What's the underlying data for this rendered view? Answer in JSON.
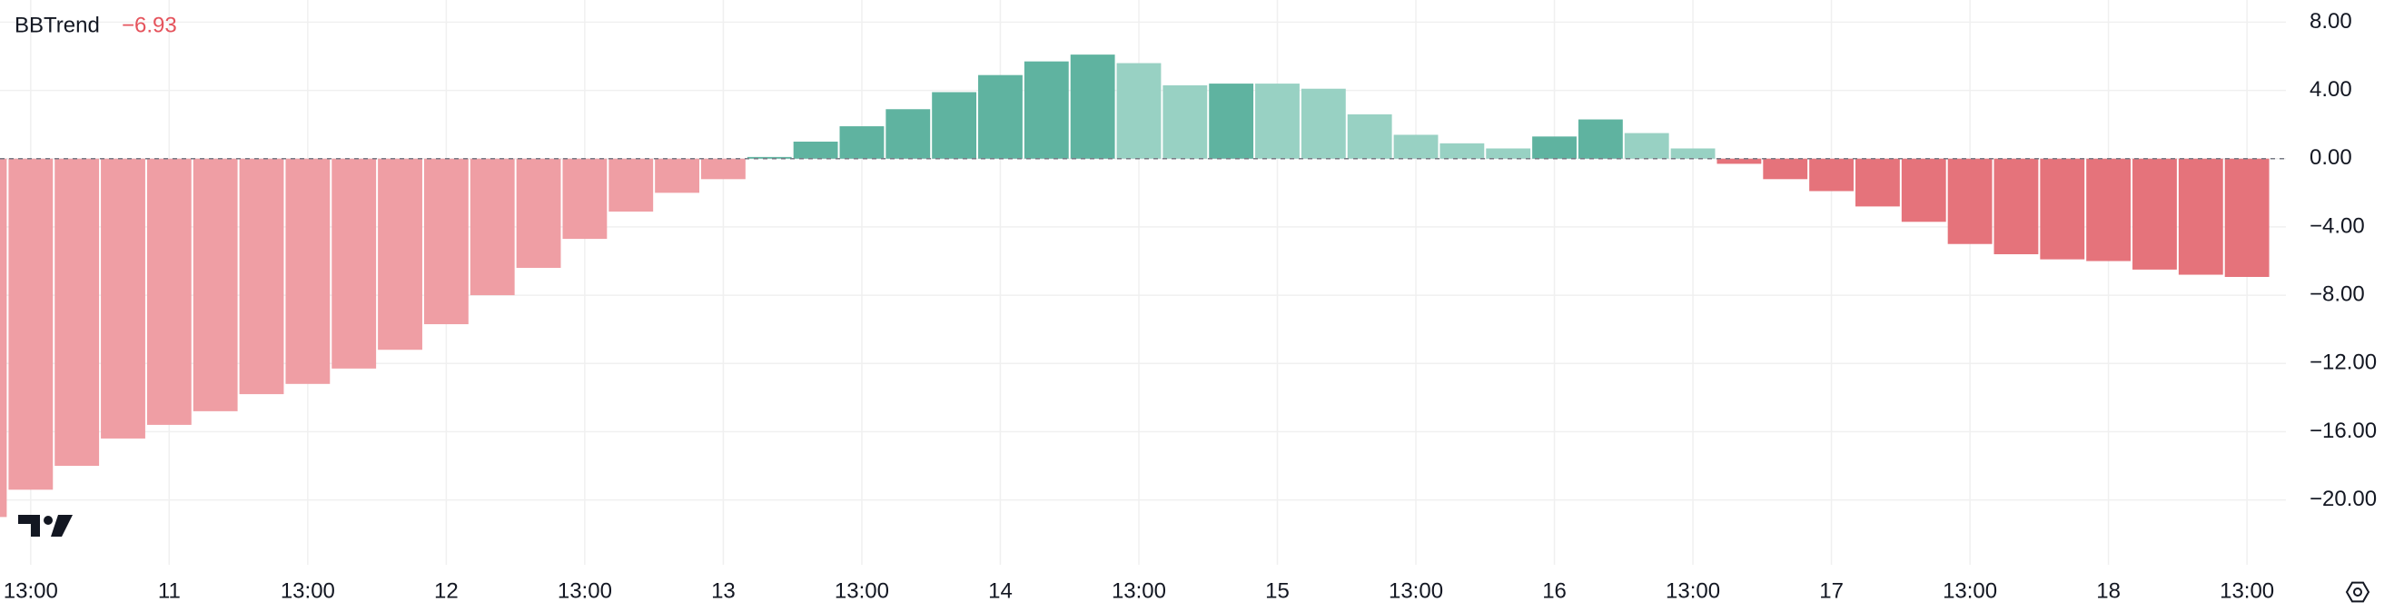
{
  "chart_data": {
    "type": "bar",
    "title": "BBTrend",
    "legend_value": "−6.93",
    "legend_value_color": "#e5535c",
    "categories": [
      null,
      "13:00",
      null,
      null,
      "11",
      null,
      null,
      "13:00",
      null,
      null,
      "12",
      null,
      null,
      "13:00",
      null,
      null,
      "13",
      null,
      null,
      "13:00",
      null,
      null,
      "14",
      null,
      null,
      "13:00",
      null,
      null,
      "15",
      null,
      null,
      "13:00",
      null,
      null,
      "16",
      null,
      null,
      "13:00",
      null,
      null,
      "17",
      null,
      null,
      "13:00",
      null,
      null,
      "18",
      null,
      null,
      "13:00"
    ],
    "values": [
      -21.0,
      -19.4,
      -18.0,
      -16.4,
      -15.6,
      -14.8,
      -13.8,
      -13.2,
      -12.3,
      -11.2,
      -9.7,
      -8.0,
      -6.4,
      -4.7,
      -3.1,
      -2.0,
      -1.2,
      0.1,
      1.0,
      1.9,
      2.9,
      3.9,
      4.9,
      5.7,
      6.1,
      5.6,
      4.3,
      4.4,
      4.4,
      4.1,
      2.6,
      1.4,
      0.9,
      0.6,
      1.3,
      2.3,
      1.5,
      0.6,
      -0.3,
      -1.2,
      -1.9,
      -2.8,
      -3.7,
      -5.0,
      -5.6,
      -5.9,
      -6.0,
      -6.5,
      -6.8,
      -6.93
    ],
    "colors": [
      "#ef9ea4",
      "#ef9ea4",
      "#ef9ea4",
      "#ef9ea4",
      "#ef9ea4",
      "#ef9ea4",
      "#ef9ea4",
      "#ef9ea4",
      "#ef9ea4",
      "#ef9ea4",
      "#ef9ea4",
      "#ef9ea4",
      "#ef9ea4",
      "#ef9ea4",
      "#ef9ea4",
      "#ef9ea4",
      "#ef9ea4",
      "#5fb3a0",
      "#5fb3a0",
      "#5fb3a0",
      "#5fb3a0",
      "#5fb3a0",
      "#5fb3a0",
      "#5fb3a0",
      "#5fb3a0",
      "#98d1c3",
      "#98d1c3",
      "#5fb3a0",
      "#98d1c3",
      "#98d1c3",
      "#98d1c3",
      "#98d1c3",
      "#98d1c3",
      "#98d1c3",
      "#5fb3a0",
      "#5fb3a0",
      "#98d1c3",
      "#98d1c3",
      "#e5737b",
      "#e5737b",
      "#e5737b",
      "#e5737b",
      "#e5737b",
      "#e5737b",
      "#e5737b",
      "#e5737b",
      "#e5737b",
      "#e5737b",
      "#e5737b",
      "#e5737b"
    ],
    "ylim": [
      -23.8,
      9.3
    ],
    "yticks": [
      {
        "value": 8,
        "label": "8.00"
      },
      {
        "value": 4,
        "label": "4.00"
      },
      {
        "value": 0,
        "label": "0.00"
      },
      {
        "value": -4,
        "label": "−4.00"
      },
      {
        "value": -8,
        "label": "−8.00"
      },
      {
        "value": -12,
        "label": "−12.00"
      },
      {
        "value": -16,
        "label": "−16.00"
      },
      {
        "value": -20,
        "label": "−20.00"
      }
    ],
    "grid": true
  }
}
